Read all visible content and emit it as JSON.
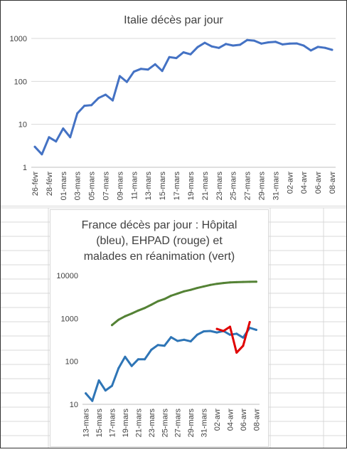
{
  "chart_data": [
    {
      "type": "line",
      "title": "Italie décès par jour",
      "y_scale": "log",
      "ylim": [
        1,
        1000
      ],
      "y_ticks": [
        "1",
        "10",
        "100",
        "1000"
      ],
      "grid": true,
      "x": [
        "26-févr",
        "27-févr",
        "28-févr",
        "29-févr",
        "01-mars",
        "02-mars",
        "03-mars",
        "04-mars",
        "05-mars",
        "06-mars",
        "07-mars",
        "08-mars",
        "09-mars",
        "10-mars",
        "11-mars",
        "12-mars",
        "13-mars",
        "14-mars",
        "15-mars",
        "16-mars",
        "17-mars",
        "18-mars",
        "19-mars",
        "20-mars",
        "21-mars",
        "22-mars",
        "23-mars",
        "24-mars",
        "25-mars",
        "26-mars",
        "27-mars",
        "28-mars",
        "29-mars",
        "30-mars",
        "31-mars",
        "01-avr",
        "02-avr",
        "03-avr",
        "04-avr",
        "05-avr",
        "06-avr",
        "07-avr",
        "08-avr"
      ],
      "x_tick_labels": [
        "26-févr",
        "28-févr",
        "01-mars",
        "03-mars",
        "05-mars",
        "07-mars",
        "09-mars",
        "11-mars",
        "13-mars",
        "15-mars",
        "17-mars",
        "19-mars",
        "21-mars",
        "23-mars",
        "25-mars",
        "27-mars",
        "29-mars",
        "31-mars",
        "02-avr",
        "04-avr",
        "06-avr",
        "08-avr"
      ],
      "series": [
        {
          "color": "#4472c4",
          "values": [
            3,
            2,
            5,
            4,
            8,
            5,
            18,
            27,
            28,
            41,
            49,
            36,
            133,
            97,
            168,
            196,
            189,
            250,
            175,
            368,
            349,
            475,
            427,
            627,
            793,
            651,
            601,
            743,
            683,
            712,
            919,
            889,
            756,
            812,
            837,
            727,
            760,
            766,
            681,
            525,
            636,
            604,
            542
          ]
        }
      ]
    },
    {
      "type": "line",
      "title": [
        "France décès par jour : Hôpital",
        "(bleu),  EHPAD (rouge) et",
        "malades en réanimation (vert)"
      ],
      "y_scale": "log",
      "ylim": [
        10,
        10000
      ],
      "y_ticks": [
        "10",
        "100",
        "1000",
        "10000"
      ],
      "grid": false,
      "x": [
        "13-mars",
        "14-mars",
        "15-mars",
        "16-mars",
        "17-mars",
        "18-mars",
        "19-mars",
        "20-mars",
        "21-mars",
        "22-mars",
        "23-mars",
        "24-mars",
        "25-mars",
        "26-mars",
        "27-mars",
        "28-mars",
        "29-mars",
        "30-mars",
        "31-mars",
        "01-avr",
        "02-avr",
        "03-avr",
        "04-avr",
        "05-avr",
        "06-avr",
        "07-avr",
        "08-avr"
      ],
      "x_tick_labels": [
        "13-mars",
        "15-mars",
        "17-mars",
        "19-mars",
        "21-mars",
        "23-mars",
        "25-mars",
        "27-mars",
        "29-mars",
        "31-mars",
        "02-avr",
        "04-avr",
        "06-avr",
        "08-avr"
      ],
      "series": [
        {
          "color": "#2e75b6",
          "values": [
            18,
            12,
            36,
            21,
            27,
            69,
            128,
            78,
            112,
            112,
            186,
            240,
            231,
            365,
            299,
            319,
            292,
            418,
            499,
            509,
            471,
            509,
            417,
            441,
            357,
            605,
            541
          ]
        },
        {
          "color": "#e00000",
          "values": [
            null,
            null,
            null,
            null,
            null,
            null,
            null,
            null,
            null,
            null,
            null,
            null,
            null,
            null,
            null,
            null,
            null,
            null,
            null,
            null,
            570,
            510,
            640,
            160,
            230,
            820,
            null
          ]
        },
        {
          "color": "#548235",
          "values": [
            null,
            null,
            null,
            null,
            699,
            931,
            1122,
            1297,
            1525,
            1746,
            2082,
            2516,
            2827,
            3375,
            3787,
            4273,
            4632,
            5107,
            5565,
            6017,
            6399,
            6662,
            6872,
            6978,
            7072,
            7131,
            7148
          ]
        }
      ]
    }
  ]
}
